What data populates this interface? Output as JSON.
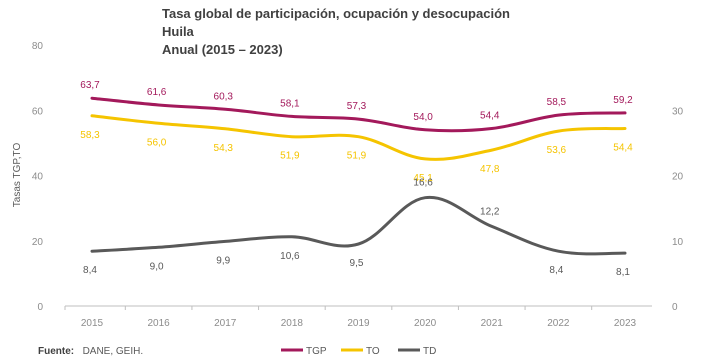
{
  "chart_data": {
    "type": "line",
    "title_lines": [
      "Tasa global de participación, ocupación y desocupación",
      "Huila",
      "Anual (2015 – 2023)"
    ],
    "ylabel": "Tasas TGP,TO",
    "ylim_left": [
      0,
      80
    ],
    "yticks_left": [
      0,
      20,
      40,
      60,
      80
    ],
    "ylim_right": [
      0,
      40
    ],
    "yticks_right": [
      0,
      10,
      20,
      30
    ],
    "categories": [
      "2015",
      "2016",
      "2017",
      "2018",
      "2019",
      "2020",
      "2021",
      "2022",
      "2023"
    ],
    "series": [
      {
        "name": "TGP",
        "axis": "left",
        "color": "#a3195b",
        "values": [
          63.7,
          61.6,
          60.3,
          58.1,
          57.3,
          54.0,
          54.4,
          58.5,
          59.2
        ],
        "labels": [
          "63,7",
          "61,6",
          "60,3",
          "58,1",
          "57,3",
          "54,0",
          "54,4",
          "58,5",
          "59,2"
        ]
      },
      {
        "name": "TO",
        "axis": "left",
        "color": "#f5c400",
        "values": [
          58.3,
          56.0,
          54.3,
          51.9,
          51.9,
          45.1,
          47.8,
          53.6,
          54.4
        ],
        "labels": [
          "58,3",
          "56,0",
          "54,3",
          "51,9",
          "51,9",
          "45,1",
          "47,8",
          "53,6",
          "54,4"
        ]
      },
      {
        "name": "TD",
        "axis": "right",
        "color": "#595959",
        "values": [
          8.4,
          9.0,
          9.9,
          10.6,
          9.5,
          16.6,
          12.2,
          8.4,
          8.1
        ],
        "labels": [
          "8,4",
          "9,0",
          "9,9",
          "10,6",
          "9,5",
          "16,6",
          "12,2",
          "8,4",
          "8,1"
        ]
      }
    ],
    "grid": false,
    "legend_position": "bottom-center"
  },
  "source": {
    "label": "Fuente:",
    "text": "DANE, GEIH."
  }
}
